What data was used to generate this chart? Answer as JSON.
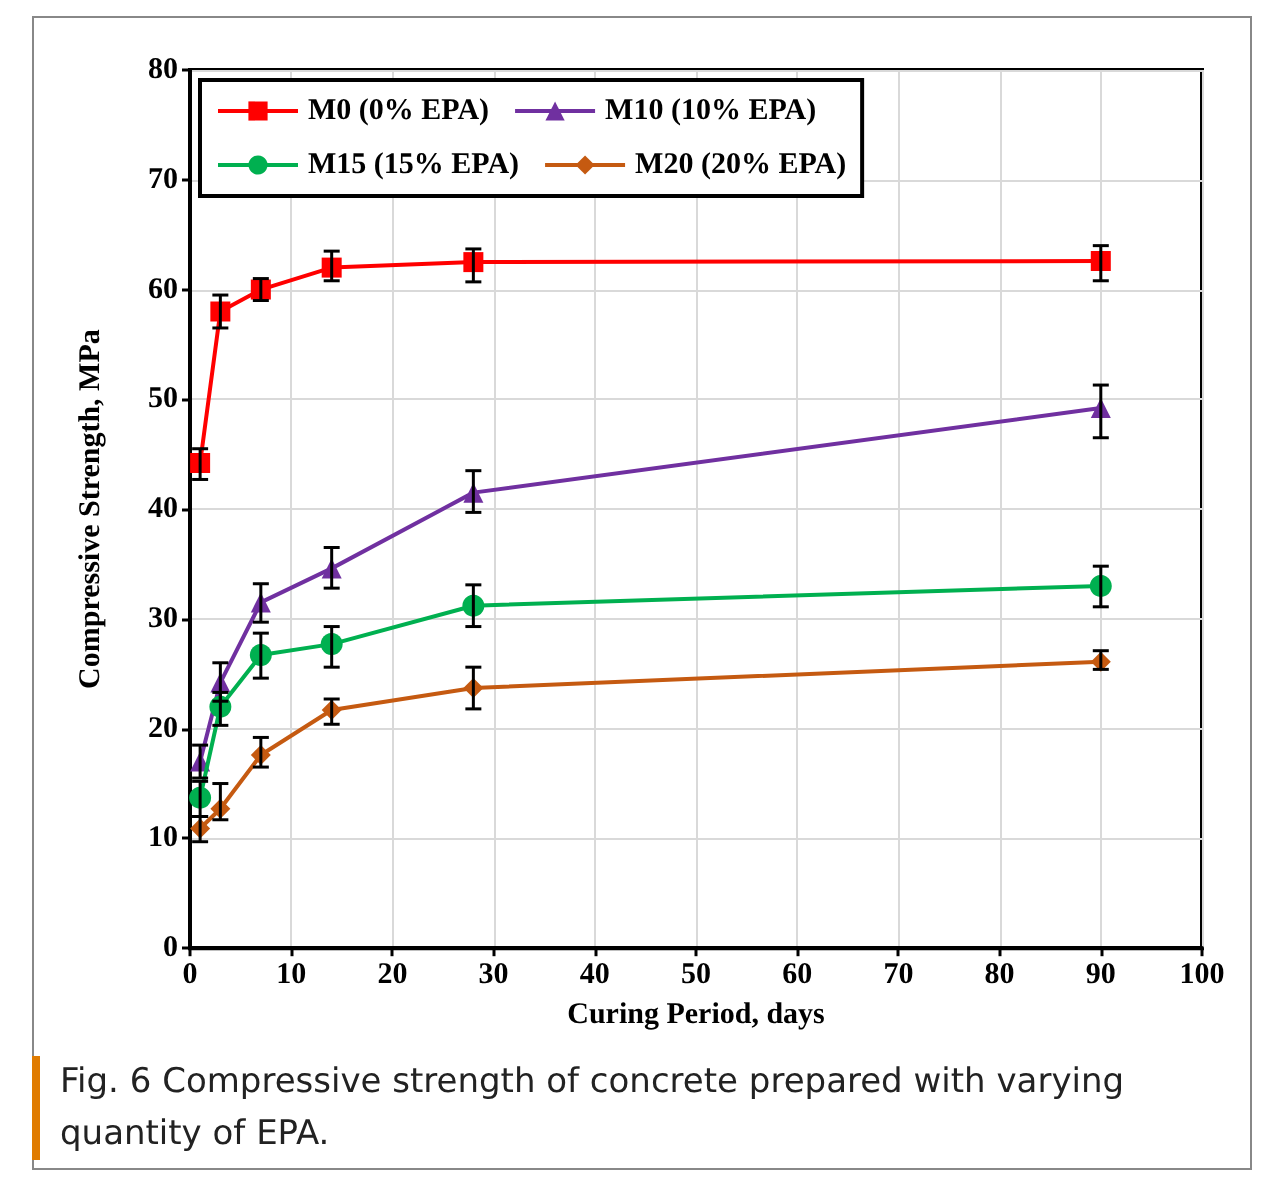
{
  "chart_data": {
    "type": "line",
    "xlabel": "Curing Period, days",
    "ylabel": "Compressive Strength, MPa",
    "x": [
      1,
      3,
      7,
      14,
      28,
      90
    ],
    "xlim": [
      0,
      100
    ],
    "xticks": [
      0,
      10,
      20,
      30,
      40,
      50,
      60,
      70,
      80,
      90,
      100
    ],
    "ylim": [
      0,
      80
    ],
    "yticks": [
      0,
      10,
      20,
      30,
      40,
      50,
      60,
      70,
      80
    ],
    "grid": true,
    "legend": "top left",
    "series": [
      {
        "name": "M0 (0% EPA)",
        "color": "#ff0000",
        "marker": "square",
        "values": [
          44.2,
          58,
          60,
          62,
          62.5,
          62.6
        ],
        "errors": [
          [
            42.7,
            45.5
          ],
          [
            56.5,
            59.5
          ],
          [
            59,
            61
          ],
          [
            60.8,
            63.5
          ],
          [
            60.7,
            63.7
          ],
          [
            60.8,
            64
          ]
        ]
      },
      {
        "name": "M10 (10% EPA)",
        "color": "#7030a0",
        "marker": "triangle",
        "values": [
          17,
          24.2,
          31.5,
          34.6,
          41.5,
          49.2
        ],
        "errors": [
          [
            15.5,
            18.5
          ],
          [
            22.5,
            26
          ],
          [
            29.7,
            33.2
          ],
          [
            32.8,
            36.5
          ],
          [
            39.7,
            43.5
          ],
          [
            46.5,
            51.3
          ]
        ]
      },
      {
        "name": "M15 (15% EPA)",
        "color": "#00b050",
        "marker": "circle",
        "values": [
          13.7,
          22,
          26.7,
          27.7,
          31.2,
          33
        ],
        "errors": [
          [
            12,
            15.2
          ],
          [
            20.3,
            23.3
          ],
          [
            24.6,
            28.7
          ],
          [
            25.6,
            29.3
          ],
          [
            29.3,
            33.1
          ],
          [
            31.1,
            34.8
          ]
        ]
      },
      {
        "name": "M20 (20% EPA)",
        "color": "#c55a11",
        "marker": "diamond",
        "values": [
          10.9,
          12.7,
          17.6,
          21.7,
          23.7,
          26.1
        ],
        "errors": [
          [
            9.7,
            12
          ],
          [
            11.7,
            15
          ],
          [
            16.5,
            19.2
          ],
          [
            20.4,
            22.7
          ],
          [
            21.8,
            25.6
          ],
          [
            25.4,
            27.1
          ]
        ]
      }
    ],
    "annotations": [
      "Fig. 6  Compressive strength of concrete prepared with varying quantity of EPA."
    ]
  }
}
